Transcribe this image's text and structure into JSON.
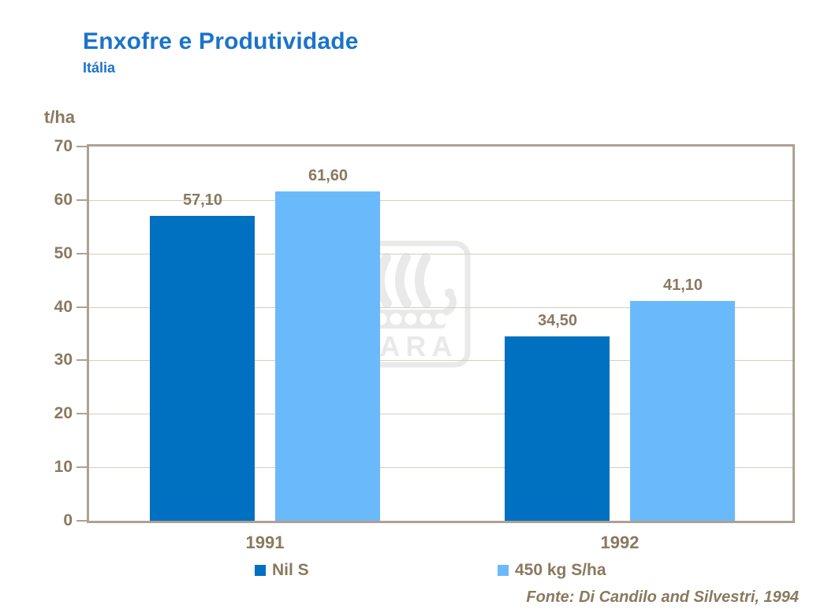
{
  "header": {
    "title": "Enxofre e Produtividade",
    "subtitle": "Itália"
  },
  "chart_data": {
    "type": "bar",
    "title": "Enxofre e Produtividade",
    "subtitle": "Itália",
    "ylabel": "t/ha",
    "ylim": [
      0,
      70
    ],
    "yticks": [
      70,
      60,
      50,
      40,
      30,
      20,
      10,
      0
    ],
    "grid": true,
    "legend_position": "bottom",
    "categories": [
      "1991",
      "1992"
    ],
    "series": [
      {
        "name": "Nil S",
        "color": "#0070C0",
        "values": [
          57.1,
          34.5
        ],
        "value_labels": [
          "57,10",
          "34,50"
        ]
      },
      {
        "name": "450 kg S/ha",
        "color": "#6ABAFB",
        "values": [
          61.6,
          41.1
        ],
        "value_labels": [
          "61,60",
          "41,10"
        ]
      }
    ]
  },
  "watermark": {
    "brand": "YARA"
  },
  "footer": {
    "source": "Fonte: Di Candilo and Silvestri, 1994"
  },
  "colors": {
    "background": "#FFFFFF",
    "title": "#1B74C9",
    "axis_text": "#8A795F",
    "plot_border": "#ACA294",
    "gridline": "#D5CEC0",
    "series1": "#0070C0",
    "series2": "#6ABAFB",
    "watermark": "#E9E9E9"
  }
}
